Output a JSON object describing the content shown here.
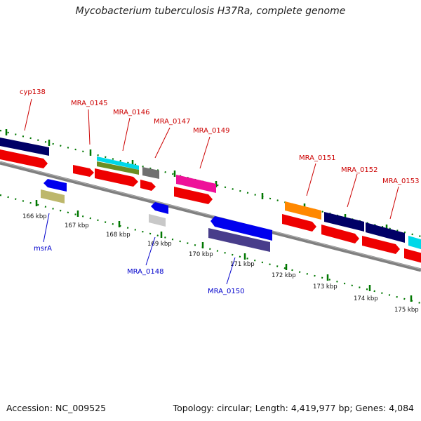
{
  "title": "Mycobacterium tuberculosis H37Ra, complete genome",
  "footer": {
    "accession": "Accession: NC_009525",
    "summary": "Topology: circular; Length: 4,419,977 bp; Genes: 4,084"
  },
  "scale_labels": [
    "166 kbp",
    "167 kbp",
    "168 kbp",
    "169 kbp",
    "170 kbp",
    "171 kbp",
    "172 kbp",
    "173 kbp",
    "174 kbp",
    "175 kbp"
  ],
  "gene_labels_top": [
    "cyp138",
    "MRA_0145",
    "MRA_0146",
    "MRA_0147",
    "MRA_0149",
    "MRA_0151",
    "MRA_0152",
    "MRA_0153"
  ],
  "gene_labels_bottom": [
    "msrA",
    "MRA_0148",
    "MRA_0150"
  ],
  "colors": {
    "red": "#ee0000",
    "navy": "#000066",
    "blue": "#0000ee",
    "cyan": "#00d8e8",
    "olive": "#6b8e23",
    "grey": "#707070",
    "magenta": "#ee1199",
    "orange": "#ff8800",
    "khaki": "#bdb76b",
    "lightgrey": "#c8c8c8",
    "slate": "#483d8b",
    "tick_green": "#007700",
    "backbone": "#808080"
  }
}
